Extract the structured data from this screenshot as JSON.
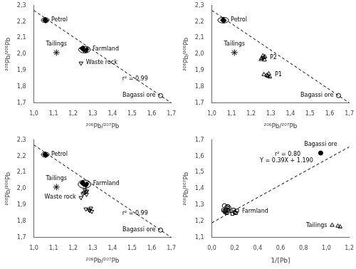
{
  "chart_data": [
    {
      "type": "scatter",
      "xlabel": "²⁰⁶Pb/²⁰⁷Pb",
      "ylabel": "²⁰⁸Pb/²⁰⁶Pb",
      "grid": false,
      "xlim": [
        1.0,
        1.7
      ],
      "ylim": [
        1.7,
        2.3
      ],
      "xticks": [
        {
          "value": 1.0,
          "label": "1,0"
        },
        {
          "value": 1.1,
          "label": "1,1"
        },
        {
          "value": 1.2,
          "label": "1,2"
        },
        {
          "value": 1.3,
          "label": "1,3"
        },
        {
          "value": 1.4,
          "label": "1,4"
        },
        {
          "value": 1.5,
          "label": "1,5"
        },
        {
          "value": 1.6,
          "label": "1,6"
        },
        {
          "value": 1.7,
          "label": "1,7"
        }
      ],
      "yticks": [
        {
          "value": 1.7,
          "label": "1,7"
        },
        {
          "value": 1.8,
          "label": "1,8"
        },
        {
          "value": 1.9,
          "label": "1,9"
        },
        {
          "value": 2.0,
          "label": "2,0"
        },
        {
          "value": 2.1,
          "label": "2,1"
        },
        {
          "value": 2.2,
          "label": "2,2"
        },
        {
          "value": 2.3,
          "label": "2,3"
        }
      ],
      "series": [
        {
          "type": "line",
          "x": [
            1.0,
            1.7
          ],
          "values": [
            2.27,
            1.7
          ],
          "color": "black",
          "line_style": "dashed"
        },
        {
          "name": "Petrol",
          "x": [
            1.055,
            1.06,
            1.058,
            1.062,
            1.057
          ],
          "values": [
            2.21,
            2.205,
            2.215,
            2.208,
            2.212
          ],
          "color": "black",
          "marker": "diamond",
          "ellipse": {
            "x": 1.058,
            "y": 2.21,
            "width": 0.04,
            "height": 0.03
          }
        },
        {
          "name": "Farmland",
          "x": [
            1.245,
            1.255,
            1.265,
            1.27,
            1.25
          ],
          "values": [
            2.035,
            2.025,
            2.02,
            2.03,
            2.04
          ],
          "color": "black",
          "marker": "diamond",
          "ellipse": {
            "x": 1.258,
            "y": 2.028,
            "width": 0.06,
            "height": 0.04
          }
        },
        {
          "name": "Tailings",
          "x": [
            1.115
          ],
          "values": [
            2.01
          ],
          "color": "black",
          "marker": "star"
        },
        {
          "name": "Waste rock",
          "x": [
            1.24
          ],
          "values": [
            1.945
          ],
          "color": "black",
          "marker": "triangle_down_open"
        },
        {
          "name": "Bagassi ore",
          "x": [
            1.645
          ],
          "values": [
            1.745
          ],
          "color": "black",
          "marker": "circle_open"
        }
      ],
      "annotations": [
        {
          "text": "r² = 0.99",
          "x": 1.45,
          "y": 1.83
        }
      ]
    },
    {
      "type": "scatter",
      "xlabel": "²⁰⁶Pb/²⁰⁷Pb",
      "ylabel": "²⁰⁸Pb/²⁰⁶Pb",
      "grid": false,
      "xlim": [
        1.0,
        1.7
      ],
      "ylim": [
        1.7,
        2.3
      ],
      "xticks": [
        {
          "value": 1.0,
          "label": "1,0"
        },
        {
          "value": 1.1,
          "label": "1,1"
        },
        {
          "value": 1.2,
          "label": "1,2"
        },
        {
          "value": 1.3,
          "label": "1,3"
        },
        {
          "value": 1.4,
          "label": "1,4"
        },
        {
          "value": 1.5,
          "label": "1,5"
        },
        {
          "value": 1.6,
          "label": "1,6"
        },
        {
          "value": 1.7,
          "label": "1,7"
        }
      ],
      "yticks": [
        {
          "value": 1.7,
          "label": "1,7"
        },
        {
          "value": 1.8,
          "label": "1,8"
        },
        {
          "value": 1.9,
          "label": "1,9"
        },
        {
          "value": 2.0,
          "label": "2,0"
        },
        {
          "value": 2.1,
          "label": "2,1"
        },
        {
          "value": 2.2,
          "label": "2,2"
        },
        {
          "value": 2.3,
          "label": "2,3"
        }
      ],
      "series": [
        {
          "type": "line",
          "x": [
            1.0,
            1.7
          ],
          "values": [
            2.27,
            1.7
          ],
          "color": "black",
          "line_style": "dashed"
        },
        {
          "name": "Petrol",
          "x": [
            1.055,
            1.06,
            1.058,
            1.062,
            1.057
          ],
          "values": [
            2.21,
            2.205,
            2.215,
            2.208,
            2.212
          ],
          "color": "black",
          "marker": "diamond",
          "ellipse": {
            "x": 1.058,
            "y": 2.21,
            "width": 0.055,
            "height": 0.035
          }
        },
        {
          "name": "Tailings",
          "x": [
            1.115
          ],
          "values": [
            2.01
          ],
          "color": "black",
          "marker": "star"
        },
        {
          "name": "Bagassi ore",
          "x": [
            1.645
          ],
          "values": [
            1.745
          ],
          "color": "black",
          "marker": "circle_open"
        },
        {
          "name": "P2",
          "x": [
            1.255,
            1.265,
            1.25,
            1.26,
            1.27,
            1.268
          ],
          "values": [
            1.975,
            1.98,
            1.968,
            1.99,
            1.985,
            1.965
          ],
          "color": "black",
          "marker": "triangle_open"
        },
        {
          "name": "P1",
          "x": [
            1.265,
            1.28,
            1.285,
            1.295,
            1.29
          ],
          "values": [
            1.875,
            1.87,
            1.865,
            1.86,
            1.88
          ],
          "color": "black",
          "marker": "triangle_open"
        }
      ]
    },
    {
      "type": "scatter",
      "xlabel": "²⁰⁶Pb/²⁰⁷Pb",
      "ylabel": "²⁰⁸Pb/²⁰⁶Pb",
      "grid": false,
      "xlim": [
        1.0,
        1.7
      ],
      "ylim": [
        1.7,
        2.3
      ],
      "xticks": [
        {
          "value": 1.0,
          "label": "1,0"
        },
        {
          "value": 1.1,
          "label": "1,1"
        },
        {
          "value": 1.2,
          "label": "1,2"
        },
        {
          "value": 1.3,
          "label": "1,3"
        },
        {
          "value": 1.4,
          "label": "1,4"
        },
        {
          "value": 1.5,
          "label": "1,5"
        },
        {
          "value": 1.6,
          "label": "1,6"
        },
        {
          "value": 1.7,
          "label": "1,7"
        }
      ],
      "yticks": [
        {
          "value": 1.7,
          "label": "1,7"
        },
        {
          "value": 1.8,
          "label": "1,8"
        },
        {
          "value": 1.9,
          "label": "1,9"
        },
        {
          "value": 2.0,
          "label": "2,0"
        },
        {
          "value": 2.1,
          "label": "2,1"
        },
        {
          "value": 2.2,
          "label": "2,2"
        },
        {
          "value": 2.3,
          "label": "2,3"
        }
      ],
      "series": [
        {
          "type": "line",
          "x": [
            1.0,
            1.7
          ],
          "values": [
            2.27,
            1.7
          ],
          "color": "black",
          "line_style": "dashed"
        },
        {
          "name": "Petrol",
          "x": [
            1.055,
            1.06,
            1.058,
            1.062,
            1.057
          ],
          "values": [
            2.21,
            2.205,
            2.215,
            2.208,
            2.212
          ],
          "color": "black",
          "marker": "diamond",
          "ellipse": {
            "x": 1.058,
            "y": 2.21,
            "width": 0.04,
            "height": 0.03
          }
        },
        {
          "name": "Farmland",
          "x": [
            1.245,
            1.255,
            1.265,
            1.27,
            1.25
          ],
          "values": [
            2.035,
            2.025,
            2.02,
            2.03,
            2.04
          ],
          "color": "black",
          "marker": "diamond",
          "ellipse": {
            "x": 1.258,
            "y": 2.028,
            "width": 0.065,
            "height": 0.05
          }
        },
        {
          "name": "Tailings",
          "x": [
            1.115
          ],
          "values": [
            2.01
          ],
          "color": "black",
          "marker": "star"
        },
        {
          "name": "Waste rock",
          "x": [
            1.24
          ],
          "values": [
            1.945
          ],
          "color": "black",
          "marker": "triangle_down_open"
        },
        {
          "name": "Bagassi ore",
          "x": [
            1.645
          ],
          "values": [
            1.745
          ],
          "color": "black",
          "marker": "circle_open"
        },
        {
          "x": [
            1.255,
            1.265,
            1.25,
            1.26,
            1.27,
            1.268
          ],
          "values": [
            1.975,
            1.98,
            1.968,
            1.99,
            1.985,
            1.965
          ],
          "color": "black",
          "marker": "triangle_down_open"
        },
        {
          "x": [
            1.265,
            1.28,
            1.285,
            1.295,
            1.29
          ],
          "values": [
            1.875,
            1.87,
            1.865,
            1.86,
            1.88
          ],
          "color": "black",
          "marker": "triangle_down_open"
        }
      ],
      "annotations": [
        {
          "text": "r² = 0.99",
          "x": 1.45,
          "y": 1.83
        }
      ]
    },
    {
      "type": "scatter",
      "xlabel": "1/[Pb]",
      "ylabel": "²⁰⁶Pb/²⁰⁷Pb",
      "grid": false,
      "xlim": [
        0.0,
        1.2
      ],
      "ylim": [
        1.1,
        1.7
      ],
      "xticks": [
        {
          "value": 0.0,
          "label": "0,0"
        },
        {
          "value": 0.2,
          "label": "0,2"
        },
        {
          "value": 0.4,
          "label": "0,4"
        },
        {
          "value": 0.6,
          "label": "0,6"
        },
        {
          "value": 0.8,
          "label": "0,8"
        },
        {
          "value": 1.0,
          "label": "1,0"
        },
        {
          "value": 1.2,
          "label": "1,2"
        }
      ],
      "yticks": [
        {
          "value": 1.1,
          "label": "1,1"
        },
        {
          "value": 1.2,
          "label": "1,2"
        },
        {
          "value": 1.3,
          "label": "1,3"
        },
        {
          "value": 1.4,
          "label": "1,4"
        },
        {
          "value": 1.5,
          "label": "1,5"
        },
        {
          "value": 1.6,
          "label": "1,6"
        },
        {
          "value": 1.7,
          "label": "1,7"
        }
      ],
      "series": [
        {
          "type": "line",
          "x": [
            0.0,
            1.2
          ],
          "values": [
            1.19,
            1.658
          ],
          "color": "black",
          "line_style": "dashed"
        },
        {
          "name": "Bagassi ore",
          "x": [
            0.95
          ],
          "values": [
            1.62
          ],
          "color": "black",
          "marker": "circle"
        },
        {
          "name": "Farmland",
          "x": [
            0.18,
            0.2,
            0.22,
            0.19,
            0.21
          ],
          "values": [
            1.245,
            1.255,
            1.265,
            1.27,
            1.25
          ],
          "color": "black",
          "marker": "square_open"
        },
        {
          "name": "Tailings",
          "x": [
            1.05,
            1.1,
            1.12
          ],
          "values": [
            1.175,
            1.17,
            1.165
          ],
          "color": "black",
          "marker": "triangle_open"
        },
        {
          "x": [
            0.12,
            0.15,
            0.13,
            0.11,
            0.14,
            0.1
          ],
          "values": [
            1.255,
            1.265,
            1.25,
            1.26,
            1.27,
            1.268
          ],
          "color": "black",
          "marker": "square_open"
        },
        {
          "x": [
            0.12,
            0.15,
            0.13,
            0.11,
            0.14
          ],
          "values": [
            1.265,
            1.28,
            1.285,
            1.295,
            1.29
          ],
          "color": "black",
          "marker": "circle_open"
        }
      ],
      "annotations": [
        {
          "text": "r² = 0.80",
          "x": 0.55,
          "y": 1.595
        },
        {
          "text": "Y = 0.39X + 1.190",
          "x": 0.42,
          "y": 1.555
        }
      ]
    }
  ]
}
